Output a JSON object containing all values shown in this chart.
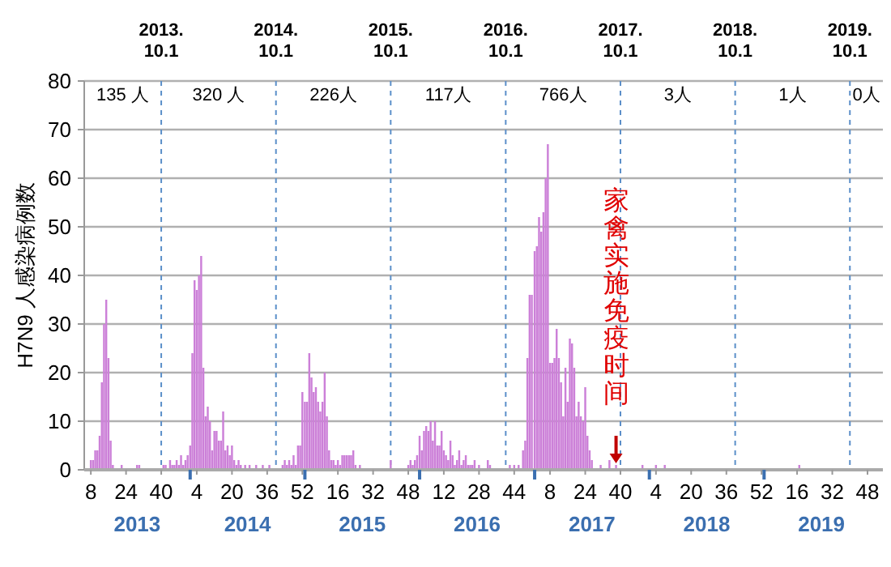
{
  "chart_data": {
    "type": "bar",
    "ylabel": "H7N9 人感染病例数",
    "x": [
      "2013-02-19",
      "2013-02-26",
      "2013-03-05",
      "2013-03-12",
      "2013-03-19",
      "2013-03-26",
      "2013-04-02",
      "2013-04-09",
      "2013-04-16",
      "2013-04-23",
      "2013-04-30",
      "2013-05-28",
      "2013-07-16",
      "2013-07-23",
      "2013-10-08",
      "2013-10-15",
      "2013-10-29",
      "2013-11-05",
      "2013-11-12",
      "2013-11-19",
      "2013-11-26",
      "2013-12-03",
      "2013-12-10",
      "2013-12-17",
      "2013-12-24",
      "2014-01-01",
      "2014-01-08",
      "2014-01-15",
      "2014-01-22",
      "2014-01-29",
      "2014-02-05",
      "2014-02-12",
      "2014-02-19",
      "2014-02-26",
      "2014-03-05",
      "2014-03-12",
      "2014-03-19",
      "2014-03-26",
      "2014-04-02",
      "2014-04-09",
      "2014-04-16",
      "2014-04-23",
      "2014-04-30",
      "2014-05-07",
      "2014-05-14",
      "2014-05-21",
      "2014-05-28",
      "2014-06-04",
      "2014-06-11",
      "2014-06-25",
      "2014-07-09",
      "2014-07-30",
      "2014-08-20",
      "2014-09-10",
      "2014-10-22",
      "2014-10-29",
      "2014-11-05",
      "2014-11-12",
      "2014-11-19",
      "2014-11-26",
      "2014-12-03",
      "2014-12-10",
      "2014-12-17",
      "2014-12-24",
      "2015-01-01",
      "2015-01-08",
      "2015-01-15",
      "2015-01-22",
      "2015-01-29",
      "2015-02-05",
      "2015-02-12",
      "2015-02-19",
      "2015-02-26",
      "2015-03-05",
      "2015-03-12",
      "2015-03-19",
      "2015-03-26",
      "2015-04-02",
      "2015-04-09",
      "2015-04-16",
      "2015-04-23",
      "2015-04-30",
      "2015-05-07",
      "2015-05-14",
      "2015-05-21",
      "2015-05-28",
      "2015-06-04",
      "2015-06-11",
      "2015-06-25",
      "2015-10-01",
      "2015-11-26",
      "2015-12-03",
      "2015-12-10",
      "2015-12-17",
      "2015-12-24",
      "2016-01-01",
      "2016-01-08",
      "2016-01-15",
      "2016-01-22",
      "2016-01-29",
      "2016-02-05",
      "2016-02-12",
      "2016-02-19",
      "2016-02-26",
      "2016-03-04",
      "2016-03-11",
      "2016-03-18",
      "2016-03-25",
      "2016-04-01",
      "2016-04-08",
      "2016-04-15",
      "2016-04-22",
      "2016-04-29",
      "2016-05-06",
      "2016-05-13",
      "2016-05-20",
      "2016-05-27",
      "2016-06-03",
      "2016-06-10",
      "2016-06-17",
      "2016-06-24",
      "2016-07-08",
      "2016-08-05",
      "2016-08-12",
      "2016-10-14",
      "2016-10-28",
      "2016-11-11",
      "2016-11-25",
      "2016-12-02",
      "2016-12-09",
      "2016-12-16",
      "2016-12-23",
      "2017-01-01",
      "2017-01-08",
      "2017-01-15",
      "2017-01-22",
      "2017-01-29",
      "2017-02-05",
      "2017-02-12",
      "2017-02-19",
      "2017-02-26",
      "2017-03-05",
      "2017-03-12",
      "2017-03-19",
      "2017-03-26",
      "2017-04-02",
      "2017-04-09",
      "2017-04-16",
      "2017-04-23",
      "2017-04-30",
      "2017-05-07",
      "2017-05-14",
      "2017-05-21",
      "2017-05-28",
      "2017-06-04",
      "2017-06-11",
      "2017-06-18",
      "2017-06-25",
      "2017-07-02",
      "2017-07-30",
      "2017-08-27",
      "2017-09-17",
      "2017-12-10",
      "2018-01-22",
      "2018-02-19",
      "2019-04-23"
    ],
    "values": [
      2,
      2,
      4,
      4,
      7,
      18,
      30,
      35,
      23,
      6,
      1,
      1,
      1,
      1,
      1,
      1,
      2,
      1,
      1,
      2,
      1,
      3,
      1,
      2,
      3,
      5,
      24,
      39,
      37,
      40,
      44,
      21,
      11,
      13,
      10,
      4,
      8,
      8,
      6,
      6,
      12,
      4,
      5,
      3,
      5,
      2,
      1,
      2,
      1,
      1,
      1,
      1,
      1,
      1,
      1,
      2,
      1,
      2,
      1,
      3,
      1,
      5,
      5,
      16,
      14,
      14,
      24,
      19,
      16,
      17,
      14,
      12,
      14,
      20,
      11,
      4,
      2,
      2,
      1,
      2,
      1,
      3,
      3,
      3,
      3,
      3,
      4,
      1,
      1,
      2,
      1,
      2,
      1,
      2,
      3,
      7,
      4,
      8,
      9,
      8,
      10,
      6,
      10,
      5,
      5,
      8,
      4,
      3,
      2,
      6,
      3,
      1,
      2,
      4,
      1,
      2,
      3,
      1,
      1,
      1,
      2,
      1,
      2,
      1,
      1,
      1,
      1,
      4,
      6,
      23,
      36,
      36,
      45,
      46,
      52,
      49,
      53,
      60,
      67,
      22,
      22,
      23,
      29,
      23,
      18,
      11,
      21,
      14,
      27,
      26,
      21,
      11,
      14,
      11,
      10,
      17,
      7,
      4,
      2,
      1,
      2,
      1,
      1,
      1,
      1,
      1
    ],
    "color": "#cc80d8",
    "xlim": [
      "2013-01-29",
      "2020-01-14"
    ],
    "xticks": [
      {
        "value": "2013-02-19",
        "label": "8"
      },
      {
        "value": "2013-06-11",
        "label": "24"
      },
      {
        "value": "2013-10-01",
        "label": "40"
      },
      {
        "value": "2014-01-01",
        "label": null
      },
      {
        "value": "2014-01-22",
        "label": "4"
      },
      {
        "value": "2014-05-14",
        "label": "20"
      },
      {
        "value": "2014-09-03",
        "label": "36"
      },
      {
        "value": "2014-12-24",
        "label": "52"
      },
      {
        "value": "2015-01-01",
        "label": null
      },
      {
        "value": "2015-04-16",
        "label": "16"
      },
      {
        "value": "2015-08-06",
        "label": "32"
      },
      {
        "value": "2015-11-26",
        "label": "48"
      },
      {
        "value": "2016-01-01",
        "label": null
      },
      {
        "value": "2016-03-18",
        "label": "12"
      },
      {
        "value": "2016-07-08",
        "label": "28"
      },
      {
        "value": "2016-10-28",
        "label": "44"
      },
      {
        "value": "2017-01-01",
        "label": null
      },
      {
        "value": "2017-02-19",
        "label": "8"
      },
      {
        "value": "2017-06-11",
        "label": "24"
      },
      {
        "value": "2017-10-01",
        "label": "40"
      },
      {
        "value": "2018-01-01",
        "label": null
      },
      {
        "value": "2018-01-22",
        "label": "4"
      },
      {
        "value": "2018-05-14",
        "label": "20"
      },
      {
        "value": "2018-09-03",
        "label": "36"
      },
      {
        "value": "2018-12-24",
        "label": "52"
      },
      {
        "value": "2019-01-01",
        "label": null
      },
      {
        "value": "2019-04-16",
        "label": "16"
      },
      {
        "value": "2019-08-06",
        "label": "32"
      },
      {
        "value": "2019-11-26",
        "label": "48"
      }
    ],
    "ylim": [
      0,
      80
    ],
    "yticks": [
      0,
      10,
      20,
      30,
      40,
      50,
      60,
      70,
      80
    ],
    "grid": "y",
    "ref_lines": [
      {
        "axis": "x",
        "value": "2013-10-01",
        "label": "2013.\n10.1",
        "color": "#5b8fc9",
        "line_style": "dashed"
      },
      {
        "axis": "x",
        "value": "2014-10-01",
        "label": "2014.\n10.1",
        "color": "#5b8fc9",
        "line_style": "dashed"
      },
      {
        "axis": "x",
        "value": "2015-10-01",
        "label": "2015.\n10.1",
        "color": "#5b8fc9",
        "line_style": "dashed"
      },
      {
        "axis": "x",
        "value": "2016-10-01",
        "label": "2016.\n10.1",
        "color": "#5b8fc9",
        "line_style": "dashed"
      },
      {
        "axis": "x",
        "value": "2017-10-01",
        "label": "2017.\n10.1",
        "color": "#5b8fc9",
        "line_style": "dashed"
      },
      {
        "axis": "x",
        "value": "2018-10-01",
        "label": "2018.\n10.1",
        "color": "#5b8fc9",
        "line_style": "dashed"
      },
      {
        "axis": "x",
        "value": "2019-10-01",
        "label": "2019.\n10.1",
        "color": "#5b8fc9",
        "line_style": "dashed"
      }
    ],
    "annotations": [
      "135 人",
      "320 人",
      "226人",
      "117人",
      "766人",
      "3人",
      "1人",
      "0人",
      {
        "text": "家禽实施免疫时间",
        "x": "2017-09-17",
        "y": 1
      },
      "2013",
      "2014",
      "2015",
      "2016",
      "2017",
      "2018",
      "2019"
    ]
  }
}
